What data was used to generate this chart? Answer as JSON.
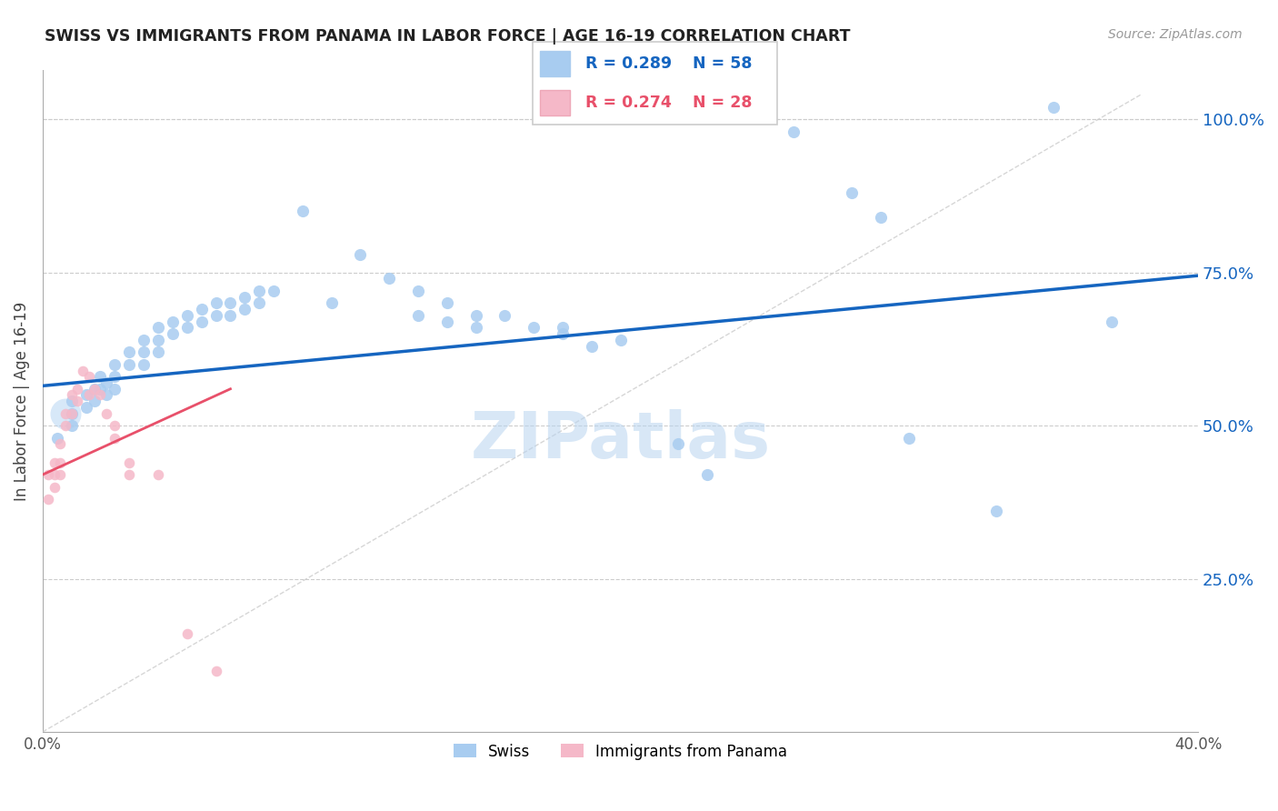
{
  "title": "SWISS VS IMMIGRANTS FROM PANAMA IN LABOR FORCE | AGE 16-19 CORRELATION CHART",
  "source": "Source: ZipAtlas.com",
  "ylabel": "In Labor Force | Age 16-19",
  "xlim": [
    0.0,
    0.4
  ],
  "ylim": [
    0.0,
    1.08
  ],
  "ytick_vals": [
    0.25,
    0.5,
    0.75,
    1.0
  ],
  "ytick_labels": [
    "25.0%",
    "50.0%",
    "75.0%",
    "100.0%"
  ],
  "watermark_text": "ZIPatlas",
  "blue_color": "#a8ccf0",
  "pink_color": "#f5b8c8",
  "blue_line_color": "#1565c0",
  "pink_line_color": "#e8506a",
  "swiss_points": [
    [
      0.005,
      0.48
    ],
    [
      0.01,
      0.5
    ],
    [
      0.01,
      0.54
    ],
    [
      0.01,
      0.52
    ],
    [
      0.015,
      0.53
    ],
    [
      0.015,
      0.55
    ],
    [
      0.018,
      0.56
    ],
    [
      0.018,
      0.54
    ],
    [
      0.02,
      0.58
    ],
    [
      0.02,
      0.56
    ],
    [
      0.022,
      0.57
    ],
    [
      0.022,
      0.55
    ],
    [
      0.025,
      0.6
    ],
    [
      0.025,
      0.58
    ],
    [
      0.025,
      0.56
    ],
    [
      0.03,
      0.62
    ],
    [
      0.03,
      0.6
    ],
    [
      0.035,
      0.64
    ],
    [
      0.035,
      0.62
    ],
    [
      0.035,
      0.6
    ],
    [
      0.04,
      0.66
    ],
    [
      0.04,
      0.64
    ],
    [
      0.04,
      0.62
    ],
    [
      0.045,
      0.67
    ],
    [
      0.045,
      0.65
    ],
    [
      0.05,
      0.68
    ],
    [
      0.05,
      0.66
    ],
    [
      0.055,
      0.69
    ],
    [
      0.055,
      0.67
    ],
    [
      0.06,
      0.7
    ],
    [
      0.06,
      0.68
    ],
    [
      0.065,
      0.7
    ],
    [
      0.065,
      0.68
    ],
    [
      0.07,
      0.71
    ],
    [
      0.07,
      0.69
    ],
    [
      0.075,
      0.72
    ],
    [
      0.075,
      0.7
    ],
    [
      0.08,
      0.72
    ],
    [
      0.09,
      0.85
    ],
    [
      0.1,
      0.7
    ],
    [
      0.11,
      0.78
    ],
    [
      0.12,
      0.74
    ],
    [
      0.13,
      0.72
    ],
    [
      0.13,
      0.68
    ],
    [
      0.14,
      0.7
    ],
    [
      0.14,
      0.67
    ],
    [
      0.15,
      0.68
    ],
    [
      0.15,
      0.66
    ],
    [
      0.16,
      0.68
    ],
    [
      0.17,
      0.66
    ],
    [
      0.18,
      0.66
    ],
    [
      0.18,
      0.65
    ],
    [
      0.19,
      0.63
    ],
    [
      0.2,
      0.64
    ],
    [
      0.22,
      0.47
    ],
    [
      0.23,
      0.42
    ],
    [
      0.25,
      1.02
    ],
    [
      0.26,
      0.98
    ],
    [
      0.28,
      0.88
    ],
    [
      0.29,
      0.84
    ],
    [
      0.3,
      0.48
    ],
    [
      0.33,
      0.36
    ],
    [
      0.35,
      1.02
    ],
    [
      0.37,
      0.67
    ]
  ],
  "panama_points": [
    [
      0.002,
      0.42
    ],
    [
      0.002,
      0.38
    ],
    [
      0.004,
      0.44
    ],
    [
      0.004,
      0.42
    ],
    [
      0.004,
      0.4
    ],
    [
      0.006,
      0.47
    ],
    [
      0.006,
      0.44
    ],
    [
      0.006,
      0.42
    ],
    [
      0.008,
      0.52
    ],
    [
      0.008,
      0.5
    ],
    [
      0.01,
      0.55
    ],
    [
      0.01,
      0.52
    ],
    [
      0.012,
      0.56
    ],
    [
      0.012,
      0.54
    ],
    [
      0.014,
      0.59
    ],
    [
      0.016,
      0.58
    ],
    [
      0.016,
      0.55
    ],
    [
      0.018,
      0.56
    ],
    [
      0.02,
      0.55
    ],
    [
      0.022,
      0.52
    ],
    [
      0.025,
      0.5
    ],
    [
      0.025,
      0.48
    ],
    [
      0.03,
      0.44
    ],
    [
      0.03,
      0.42
    ],
    [
      0.04,
      0.42
    ],
    [
      0.05,
      0.16
    ],
    [
      0.06,
      0.1
    ]
  ],
  "swiss_regression": [
    0.0,
    0.4,
    0.565,
    0.745
  ],
  "panama_regression": [
    0.0,
    0.065,
    0.42,
    0.56
  ],
  "diag_line": [
    0.0,
    0.38,
    0.0,
    1.04
  ]
}
